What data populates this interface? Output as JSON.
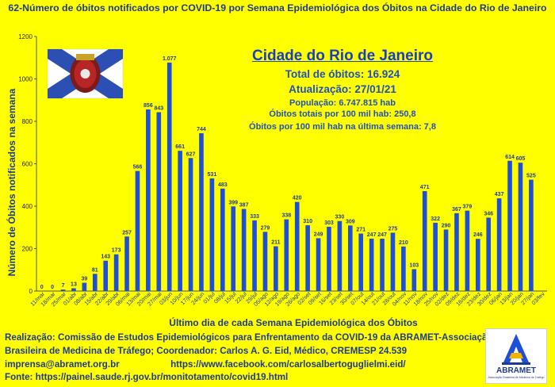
{
  "chart_data": {
    "type": "bar",
    "title": "62-Número de óbitos notificados por COVID-19 por Semana Epidemiológica dos Óbitos na Cidade do Rio de Janeiro",
    "xlabel": "Último dia de cada Semana Epidemiológica dos Óbitos",
    "ylabel": "Número de Óbitos notificados na semana",
    "ylim": [
      0,
      1200
    ],
    "yticks": [
      "0",
      "200",
      "400",
      "600",
      "800",
      "1000",
      "1200"
    ],
    "grid": false,
    "bar_color": "#1f4ed8",
    "categories": [
      "11/mar",
      "18/mar",
      "25/mar",
      "01/abr",
      "08/abr",
      "15/abr",
      "22/abr",
      "29/abr",
      "06/mai",
      "13/mai",
      "20/mai",
      "27/mai",
      "03/jun",
      "10/jun",
      "17/jun",
      "24/jun",
      "01/jul",
      "08/jul",
      "15/jul",
      "22/jul",
      "29/jul",
      "05/ago",
      "12/ago",
      "19/ago",
      "26/ago",
      "02/set",
      "09/set",
      "16/set",
      "23/set",
      "30/set",
      "07/out",
      "14/out",
      "21/out",
      "28/out",
      "04/nov",
      "11/nov",
      "18/nov",
      "25/nov",
      "02/dez",
      "09/dez",
      "16/dez",
      "23/dez",
      "30/dez",
      "06/jan",
      "13/jan",
      "20/jan",
      "27/jan",
      "03/fev"
    ],
    "values": [
      0,
      0,
      7,
      13,
      39,
      81,
      143,
      173,
      257,
      566,
      856,
      843,
      1077,
      661,
      627,
      744,
      531,
      483,
      399,
      387,
      333,
      279,
      211,
      338,
      420,
      310,
      249,
      303,
      330,
      309,
      271,
      247,
      247,
      275,
      210,
      103,
      471,
      322,
      290,
      367,
      379,
      246,
      346,
      437,
      614,
      605,
      525,
      null
    ],
    "labels": [
      "0",
      "0",
      "7",
      "13",
      "39",
      "81",
      "143",
      "173",
      "257",
      "566",
      "856",
      "843",
      "1.077",
      "661",
      "627",
      "744",
      "531",
      "483",
      "399",
      "387",
      "333",
      "279",
      "211",
      "338",
      "420",
      "310",
      "249",
      "303",
      "330",
      "309",
      "271",
      "247",
      "247",
      "275",
      "210",
      "103",
      "471",
      "322",
      "290",
      "367",
      "379",
      "246",
      "346",
      "437",
      "614",
      "605",
      "525",
      ""
    ]
  },
  "info_box": {
    "city": "Cidade do Rio de Janeiro",
    "total": "Total de óbitos: 16.924",
    "update": "Atualização: 27/01/21",
    "population": "População: 6.747.815 hab",
    "rate_total": "Óbitos totais por 100 mil hab: 250,8",
    "rate_last_week": "Óbitos por 100 mil hab na última semana: 7,8"
  },
  "footer": {
    "line1": "Realização: Comissão de Estudos Epidemiológicos para Enfrentamento da COVID-19 da ABRAMET-Associação",
    "line2": "Brasileira de Medicina de Tráfego; Coordenador: Carlos A. G. Eid, Médico, CREMESP 24.539",
    "line3": "imprensa@abramet.org.br                    https://www.facebook.com/carlosalbertoguglielmi.eid/",
    "line4": "Fonte: https://painel.saude.rj.gov.br/monitotamento/covid19.html"
  },
  "logo": {
    "name": "ABRAMET",
    "subtitle": "Associação Brasileira de Medicina de Tráfego"
  },
  "colors": {
    "background": "#ffff00",
    "bar": "#1f4ed8",
    "text": "#1f3a8f",
    "flag_blue": "#2b4fb3",
    "flag_white": "#ffffff"
  }
}
